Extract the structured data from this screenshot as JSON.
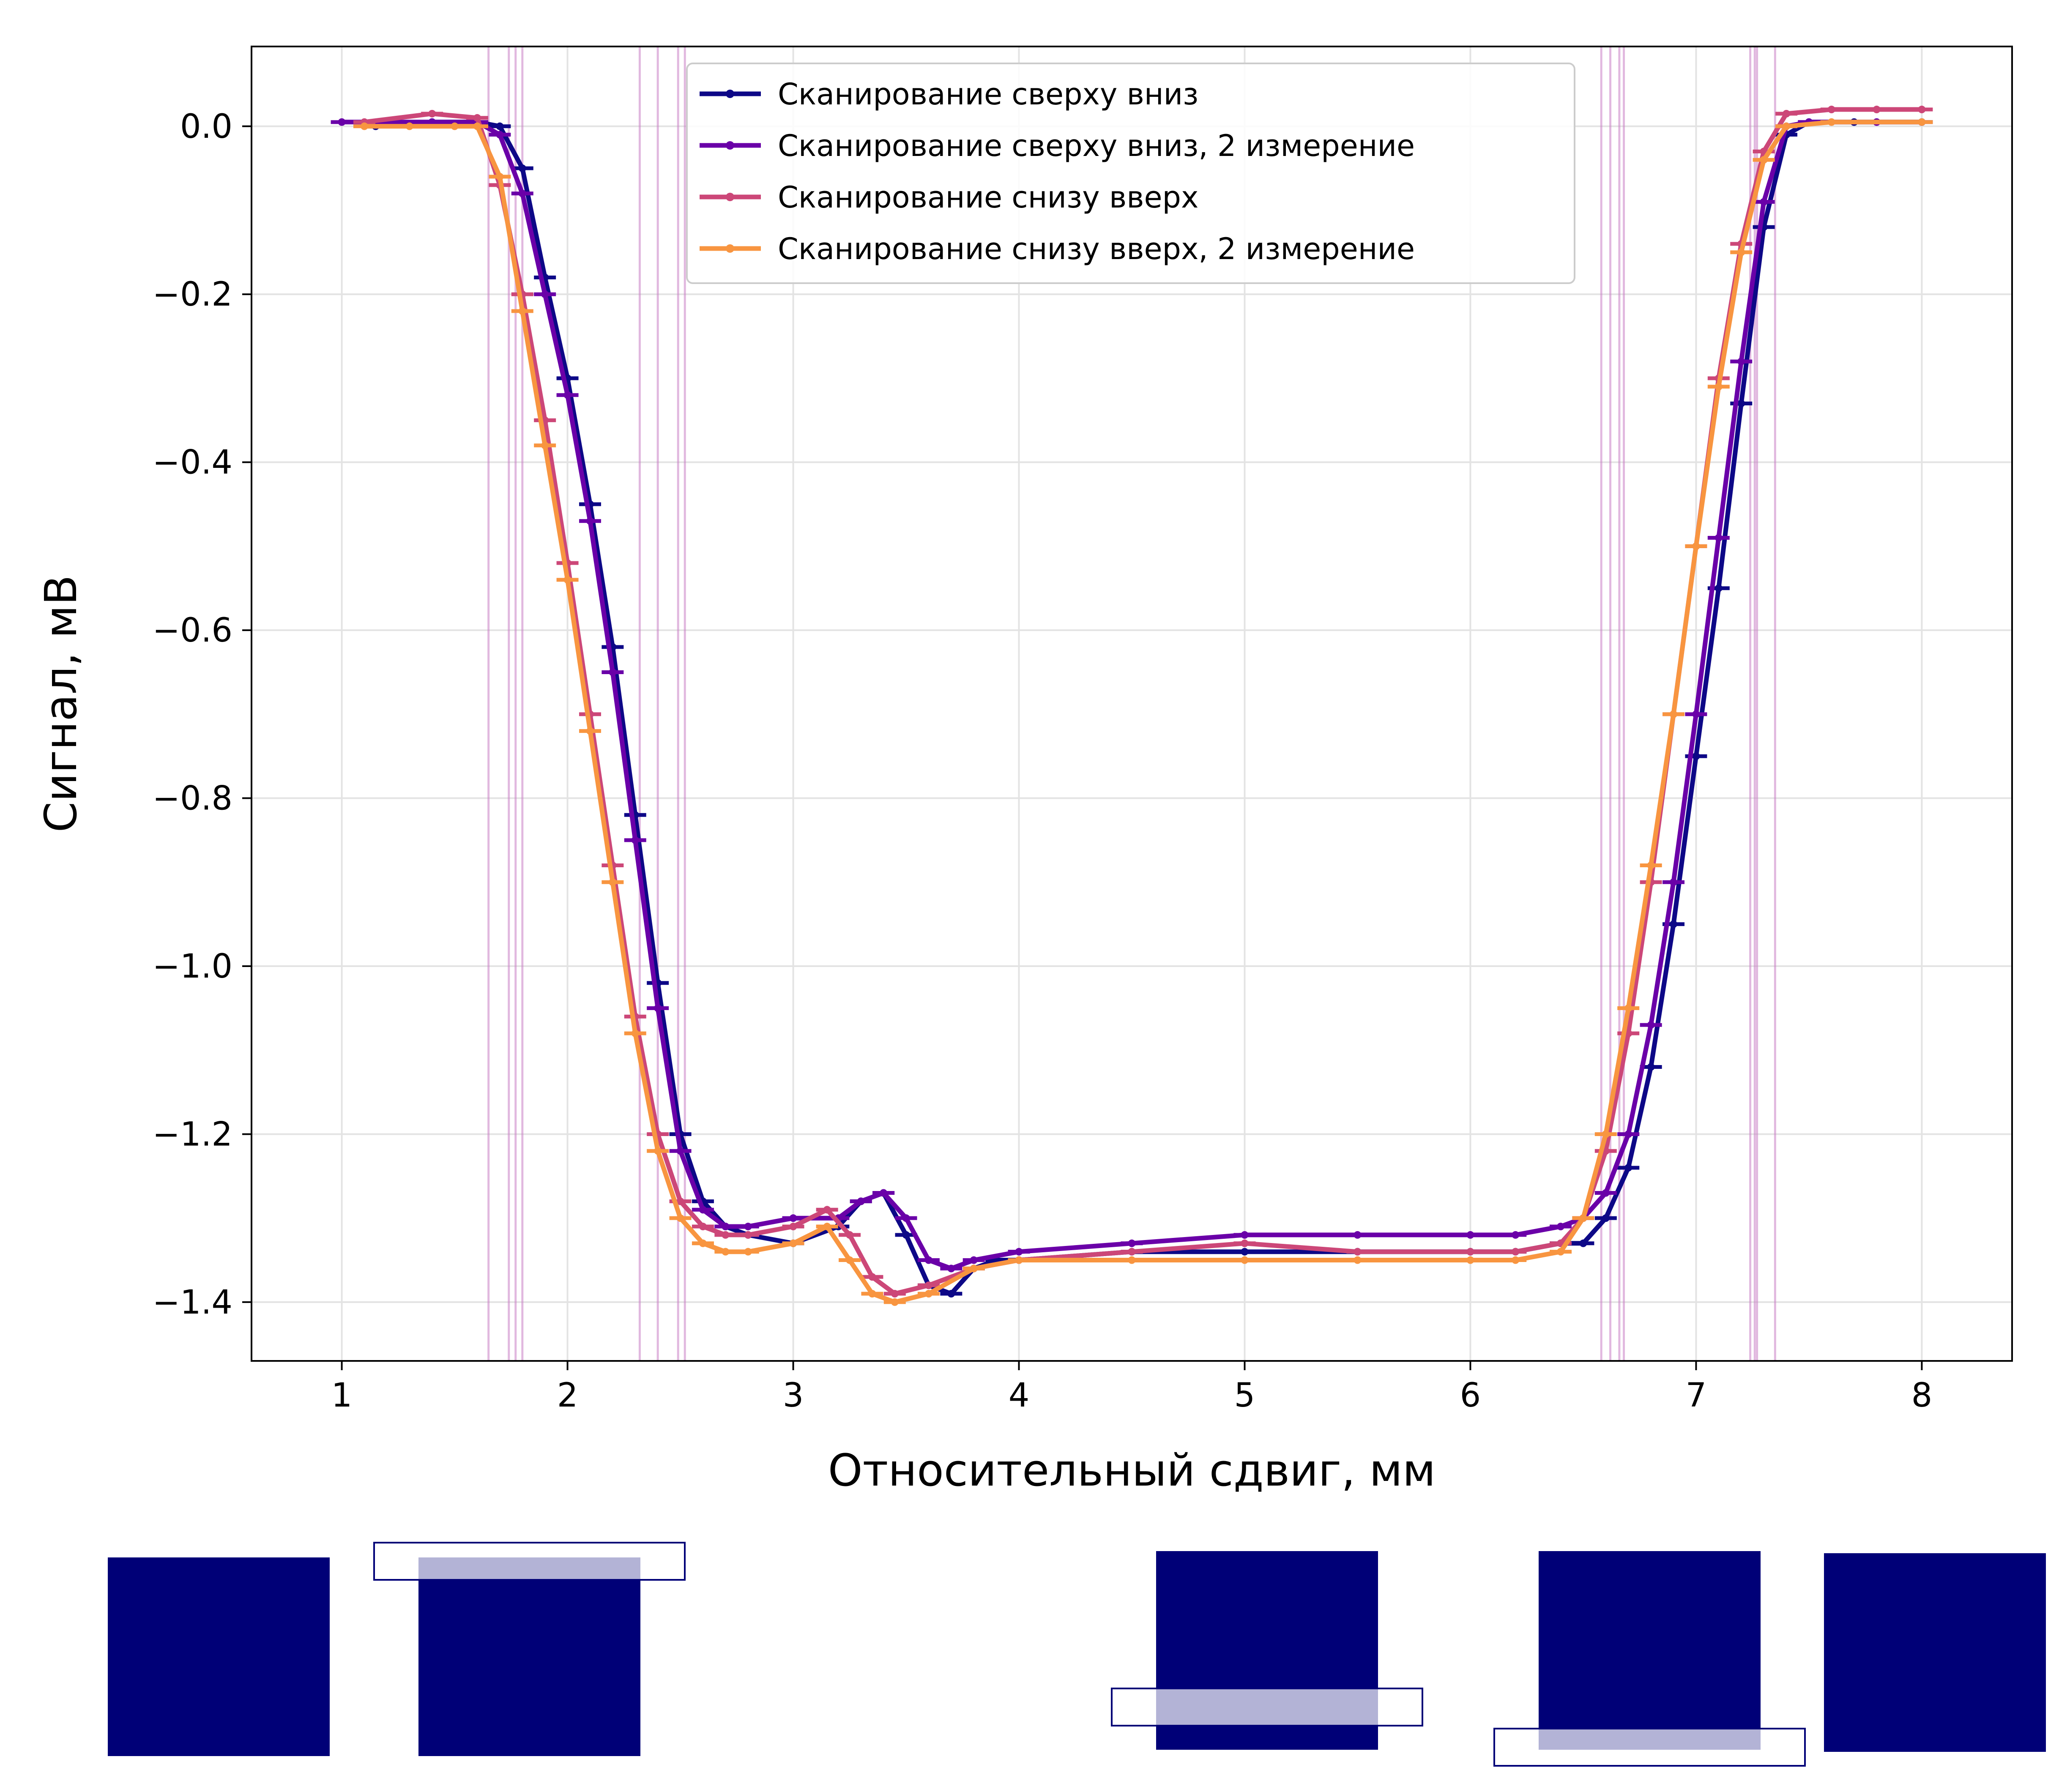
{
  "chart_data": {
    "type": "line",
    "title": "",
    "xlabel": "Относительный сдвиг, мм",
    "ylabel": "Сигнал, мВ",
    "xlim": [
      0.6,
      8.4
    ],
    "ylim": [
      -1.47,
      0.095
    ],
    "xticks": [
      1,
      2,
      3,
      4,
      5,
      6,
      7,
      8
    ],
    "xtick_labels": [
      "1",
      "2",
      "3",
      "4",
      "5",
      "6",
      "7",
      "8"
    ],
    "yticks": [
      0.0,
      -0.2,
      -0.4,
      -0.6,
      -0.8,
      -1.0,
      -1.2,
      -1.4
    ],
    "ytick_labels": [
      "0.0",
      "−0.2",
      "−0.4",
      "−0.6",
      "−0.8",
      "−1.0",
      "−1.2",
      "−1.4"
    ],
    "grid": true,
    "legend_position": "top-center",
    "error_bars": "short horizontal caps along each curve",
    "vertical_lines": {
      "color": "#c97ec4",
      "x": [
        1.65,
        1.74,
        1.77,
        1.8,
        2.32,
        2.4,
        2.49,
        2.52,
        6.58,
        6.62,
        6.66,
        6.68,
        7.24,
        7.26,
        7.27,
        7.35
      ]
    },
    "series": [
      {
        "name": "Сканирование сверху вниз",
        "color": "#0d0887",
        "x": [
          1.15,
          1.4,
          1.6,
          1.7,
          1.8,
          1.9,
          2.0,
          2.1,
          2.2,
          2.3,
          2.4,
          2.5,
          2.6,
          2.7,
          2.8,
          3.0,
          3.2,
          3.3,
          3.4,
          3.5,
          3.6,
          3.7,
          3.8,
          3.9,
          4.0,
          4.5,
          5.0,
          5.5,
          6.0,
          6.2,
          6.4,
          6.5,
          6.6,
          6.7,
          6.8,
          6.9,
          7.0,
          7.1,
          7.2,
          7.3,
          7.4,
          7.5,
          7.7,
          8.0
        ],
        "y": [
          0.0,
          0.005,
          0.005,
          0.0,
          -0.05,
          -0.18,
          -0.3,
          -0.45,
          -0.62,
          -0.82,
          -1.02,
          -1.2,
          -1.28,
          -1.31,
          -1.32,
          -1.33,
          -1.31,
          -1.28,
          -1.27,
          -1.32,
          -1.38,
          -1.39,
          -1.36,
          -1.35,
          -1.35,
          -1.34,
          -1.34,
          -1.34,
          -1.34,
          -1.34,
          -1.33,
          -1.33,
          -1.3,
          -1.24,
          -1.12,
          -0.95,
          -0.75,
          -0.55,
          -0.33,
          -0.12,
          -0.01,
          0.005,
          0.005,
          0.005
        ]
      },
      {
        "name": "Сканирование сверху вниз, 2 измерение",
        "color": "#6a00a8",
        "x": [
          1.0,
          1.2,
          1.4,
          1.6,
          1.7,
          1.8,
          1.9,
          2.0,
          2.1,
          2.2,
          2.3,
          2.4,
          2.5,
          2.6,
          2.7,
          2.8,
          3.0,
          3.2,
          3.3,
          3.4,
          3.5,
          3.6,
          3.7,
          3.8,
          4.0,
          4.5,
          5.0,
          5.5,
          6.0,
          6.2,
          6.4,
          6.5,
          6.6,
          6.7,
          6.8,
          6.9,
          7.0,
          7.1,
          7.2,
          7.3,
          7.4,
          7.5,
          7.8,
          8.0
        ],
        "y": [
          0.005,
          0.005,
          0.005,
          0.005,
          -0.01,
          -0.08,
          -0.2,
          -0.32,
          -0.47,
          -0.65,
          -0.85,
          -1.05,
          -1.22,
          -1.29,
          -1.31,
          -1.31,
          -1.3,
          -1.3,
          -1.28,
          -1.27,
          -1.3,
          -1.35,
          -1.36,
          -1.35,
          -1.34,
          -1.33,
          -1.32,
          -1.32,
          -1.32,
          -1.32,
          -1.31,
          -1.3,
          -1.27,
          -1.2,
          -1.07,
          -0.9,
          -0.7,
          -0.49,
          -0.28,
          -0.09,
          0.0,
          0.005,
          0.005,
          0.005
        ]
      },
      {
        "name": "Сканирование снизу вверх",
        "color": "#cc4778",
        "x": [
          1.1,
          1.4,
          1.6,
          1.7,
          1.8,
          1.9,
          2.0,
          2.1,
          2.2,
          2.3,
          2.4,
          2.5,
          2.6,
          2.7,
          2.8,
          3.0,
          3.15,
          3.25,
          3.35,
          3.45,
          3.6,
          3.8,
          4.0,
          4.5,
          5.0,
          5.5,
          6.0,
          6.2,
          6.4,
          6.5,
          6.6,
          6.7,
          6.8,
          6.9,
          7.0,
          7.1,
          7.2,
          7.3,
          7.4,
          7.6,
          7.8,
          8.0
        ],
        "y": [
          0.005,
          0.015,
          0.01,
          -0.07,
          -0.2,
          -0.35,
          -0.52,
          -0.7,
          -0.88,
          -1.06,
          -1.2,
          -1.28,
          -1.31,
          -1.32,
          -1.32,
          -1.31,
          -1.29,
          -1.32,
          -1.37,
          -1.39,
          -1.38,
          -1.36,
          -1.35,
          -1.34,
          -1.33,
          -1.34,
          -1.34,
          -1.34,
          -1.33,
          -1.3,
          -1.22,
          -1.08,
          -0.9,
          -0.7,
          -0.5,
          -0.3,
          -0.14,
          -0.03,
          0.015,
          0.02,
          0.02,
          0.02
        ]
      },
      {
        "name": "Сканирование снизу вверх, 2 измерение",
        "color": "#f89540",
        "x": [
          1.1,
          1.3,
          1.5,
          1.6,
          1.7,
          1.8,
          1.9,
          2.0,
          2.1,
          2.2,
          2.3,
          2.4,
          2.5,
          2.6,
          2.7,
          2.8,
          3.0,
          3.15,
          3.25,
          3.35,
          3.45,
          3.6,
          3.8,
          4.0,
          4.5,
          5.0,
          5.5,
          6.0,
          6.2,
          6.4,
          6.5,
          6.6,
          6.7,
          6.8,
          6.9,
          7.0,
          7.1,
          7.2,
          7.3,
          7.4,
          7.6,
          8.0
        ],
        "y": [
          0.0,
          0.0,
          0.0,
          0.0,
          -0.06,
          -0.22,
          -0.38,
          -0.54,
          -0.72,
          -0.9,
          -1.08,
          -1.22,
          -1.3,
          -1.33,
          -1.34,
          -1.34,
          -1.33,
          -1.31,
          -1.35,
          -1.39,
          -1.4,
          -1.39,
          -1.36,
          -1.35,
          -1.35,
          -1.35,
          -1.35,
          -1.35,
          -1.35,
          -1.34,
          -1.3,
          -1.2,
          -1.05,
          -0.88,
          -0.7,
          -0.5,
          -0.31,
          -0.15,
          -0.04,
          0.0,
          0.005,
          0.005
        ]
      }
    ]
  },
  "schematics": {
    "fill_color": "#000077",
    "highlight_color": "#b3b3d6",
    "items": [
      {
        "name": "block-1",
        "overlay": "none"
      },
      {
        "name": "block-2",
        "overlay": "top"
      },
      {
        "name": "block-3",
        "overlay": "lower"
      },
      {
        "name": "block-4",
        "overlay": "bottom"
      },
      {
        "name": "block-5",
        "overlay": "none"
      }
    ]
  }
}
